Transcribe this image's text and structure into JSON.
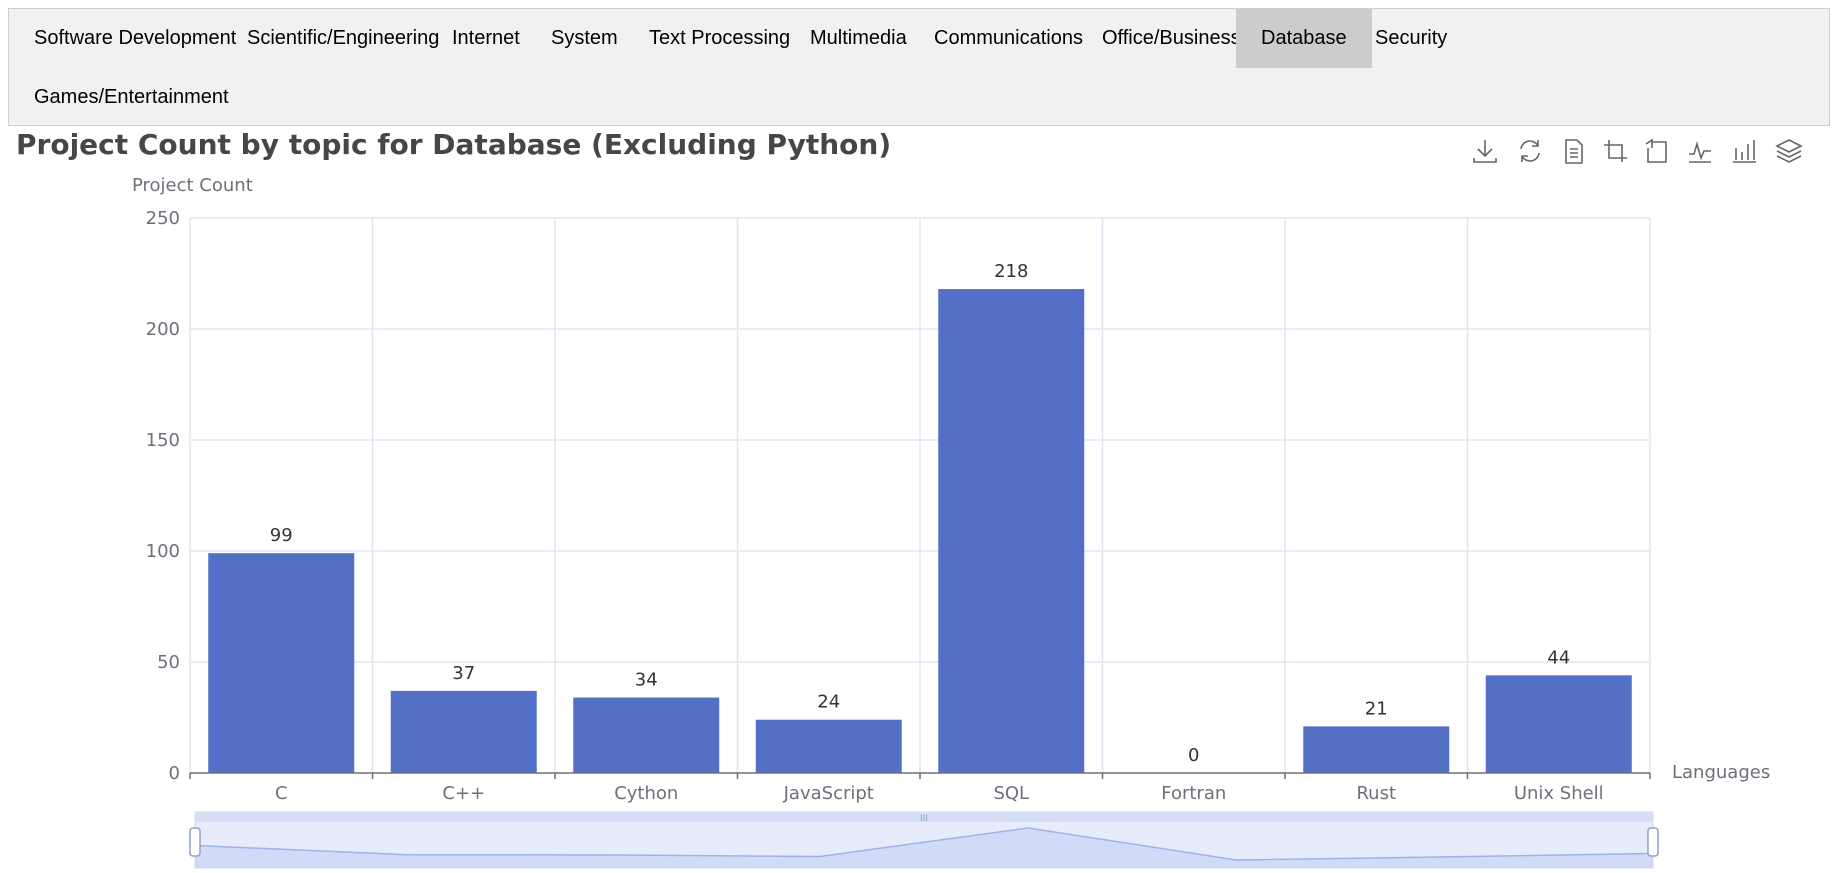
{
  "tabs": [
    {
      "label": "Software Development",
      "active": false
    },
    {
      "label": "Scientific/Engineering",
      "active": false
    },
    {
      "label": "Internet",
      "active": false
    },
    {
      "label": "System",
      "active": false
    },
    {
      "label": "Text Processing",
      "active": false
    },
    {
      "label": "Multimedia",
      "active": false
    },
    {
      "label": "Communications",
      "active": false
    },
    {
      "label": "Office/Business",
      "active": false
    },
    {
      "label": "Database",
      "active": true
    },
    {
      "label": "Security",
      "active": false
    },
    {
      "label": "Games/Entertainment",
      "active": false
    }
  ],
  "toolbox": [
    "download-icon",
    "refresh-icon",
    "data-view-icon",
    "zoom-icon",
    "zoom-reset-icon",
    "line-chart-icon",
    "bar-chart-icon",
    "stack-icon"
  ],
  "colors": {
    "bar": "#5470c6",
    "axis": "#6e7079",
    "grid": "#e0e6f1",
    "label": "#333333"
  },
  "chart_data": {
    "type": "bar",
    "title": "Project Count by topic for Database (Excluding Python)",
    "xlabel": "Languages",
    "ylabel": "Project Count",
    "categories": [
      "C",
      "C++",
      "Cython",
      "JavaScript",
      "SQL",
      "Fortran",
      "Rust",
      "Unix Shell"
    ],
    "values": [
      99,
      37,
      34,
      24,
      218,
      0,
      21,
      44
    ],
    "ylim": [
      0,
      250
    ],
    "yticks": [
      0,
      50,
      100,
      150,
      200,
      250
    ],
    "grid": true,
    "data_labels": true,
    "data_zoom": true
  }
}
